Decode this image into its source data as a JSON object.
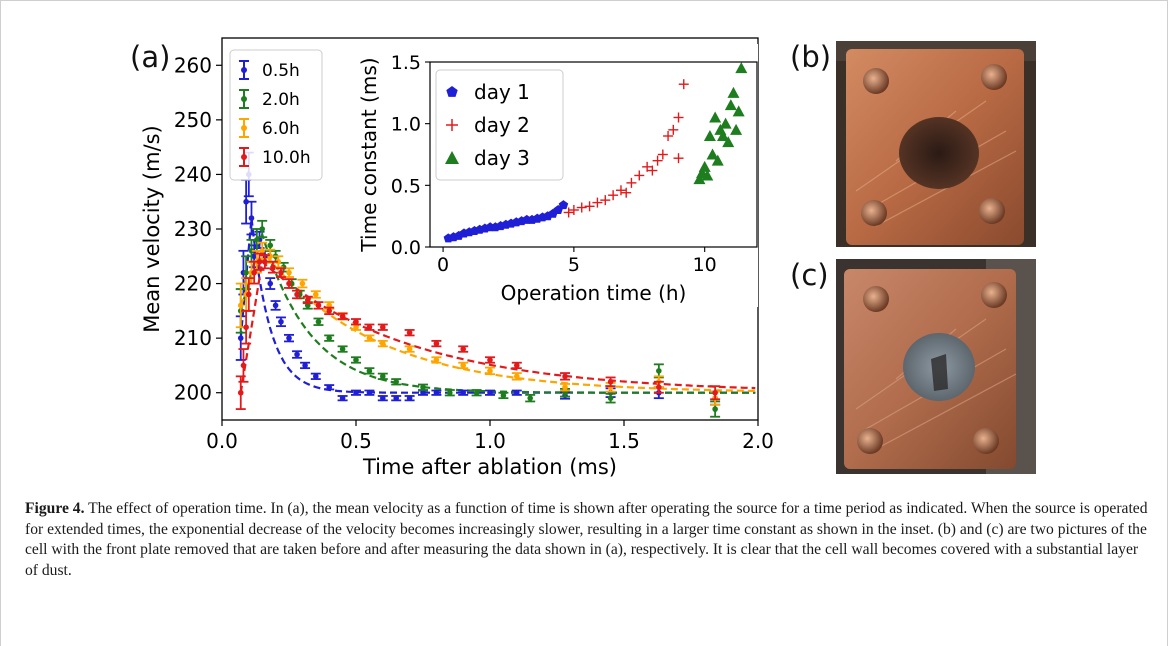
{
  "figure": {
    "panel_labels": [
      "(a)",
      "(b)",
      "(c)"
    ],
    "caption_label": "Figure 4.",
    "caption_text": "The effect of operation time. In (a), the mean velocity as a function of time is shown after operating the source for a time period as indicated. When the source is operated for extended times, the exponential decrease of the velocity becomes increasingly slower, resulting in a larger time constant as shown in the inset. (b) and (c) are two pictures of the cell with the front plate removed that are taken before and after measuring the data shown in (a), respectively. It is clear that the cell wall becomes covered with a substantial layer of dust."
  },
  "chart_data": [
    {
      "type": "scatter",
      "title": "",
      "xlabel": "Time after ablation (ms)",
      "ylabel": "Mean velocity (m/s)",
      "xlim": [
        0.0,
        2.0
      ],
      "ylim": [
        195,
        265
      ],
      "xticks": [
        0.0,
        0.5,
        1.0,
        1.5,
        2.0
      ],
      "xtick_labels": [
        "0.0",
        "0.5",
        "1.0",
        "1.5",
        "2.0"
      ],
      "yticks": [
        200,
        210,
        220,
        230,
        240,
        250,
        260
      ],
      "ytick_labels": [
        "200",
        "210",
        "220",
        "230",
        "240",
        "250",
        "260"
      ],
      "legend": "top-left",
      "error_bars": true,
      "fits": "dashed exponential",
      "series": [
        {
          "name": "0.5h",
          "color": "#1f1fd6",
          "x": [
            0.07,
            0.08,
            0.09,
            0.1,
            0.11,
            0.12,
            0.14,
            0.16,
            0.18,
            0.2,
            0.22,
            0.25,
            0.28,
            0.31,
            0.35,
            0.4,
            0.45,
            0.5,
            0.55,
            0.6,
            0.65,
            0.7,
            0.75,
            0.8,
            0.9,
            1.0,
            1.1,
            1.28,
            1.45,
            1.63,
            1.84
          ],
          "y": [
            210,
            222,
            235,
            240,
            232,
            225,
            228,
            225,
            220,
            216,
            213,
            210,
            207,
            205,
            203,
            201,
            199,
            200,
            200,
            199,
            199,
            199,
            200,
            200,
            200,
            200,
            200,
            199.5,
            200,
            200,
            199
          ],
          "err": [
            4,
            4,
            4,
            4,
            3,
            2,
            1.5,
            1,
            1,
            0.8,
            0.8,
            0.6,
            0.6,
            0.5,
            0.5,
            0.4,
            0.4,
            0.4,
            0.4,
            0.4,
            0.4,
            0.4,
            0.4,
            0.4,
            0.4,
            0.4,
            0.4,
            0.6,
            0.8,
            1,
            1.2
          ]
        },
        {
          "name": "2.0h",
          "color": "#1e7d1e",
          "x": [
            0.07,
            0.09,
            0.11,
            0.13,
            0.15,
            0.18,
            0.2,
            0.23,
            0.26,
            0.29,
            0.32,
            0.36,
            0.4,
            0.45,
            0.5,
            0.55,
            0.6,
            0.65,
            0.75,
            0.85,
            0.95,
            1.05,
            1.15,
            1.28,
            1.45,
            1.63,
            1.84
          ],
          "y": [
            215,
            222,
            226,
            228,
            230,
            227,
            225,
            223,
            220,
            218,
            216,
            213,
            210,
            208,
            206,
            204,
            203,
            202,
            201,
            200,
            200,
            199.5,
            199,
            200,
            199,
            204,
            197
          ],
          "err": [
            4,
            3,
            2,
            2,
            1.5,
            1,
            1,
            0.8,
            0.8,
            0.7,
            0.6,
            0.6,
            0.5,
            0.5,
            0.5,
            0.5,
            0.5,
            0.5,
            0.5,
            0.5,
            0.5,
            0.5,
            0.6,
            0.7,
            0.8,
            1.2,
            1.4
          ]
        },
        {
          "name": "6.0h",
          "color": "#ffa500",
          "x": [
            0.07,
            0.09,
            0.11,
            0.13,
            0.15,
            0.18,
            0.21,
            0.25,
            0.3,
            0.35,
            0.4,
            0.45,
            0.5,
            0.55,
            0.6,
            0.7,
            0.8,
            0.9,
            1.0,
            1.1,
            1.28,
            1.45,
            1.63,
            1.84
          ],
          "y": [
            216,
            218,
            222,
            224,
            226,
            225,
            224,
            222,
            220,
            218,
            216,
            214,
            212,
            210,
            209,
            208,
            206,
            205,
            204,
            203,
            201,
            201,
            202,
            199
          ],
          "err": [
            4,
            3,
            2,
            2,
            1.5,
            1.2,
            1,
            0.8,
            0.7,
            0.6,
            0.6,
            0.6,
            0.5,
            0.5,
            0.5,
            0.5,
            0.5,
            0.5,
            0.6,
            0.6,
            0.6,
            0.8,
            1,
            1.2
          ]
        },
        {
          "name": "10.0h",
          "color": "#e31a1c",
          "x": [
            0.07,
            0.08,
            0.09,
            0.1,
            0.12,
            0.14,
            0.16,
            0.19,
            0.22,
            0.25,
            0.28,
            0.32,
            0.36,
            0.4,
            0.45,
            0.5,
            0.55,
            0.6,
            0.7,
            0.8,
            0.9,
            1.0,
            1.1,
            1.28,
            1.45,
            1.63,
            1.84
          ],
          "y": [
            200,
            205,
            212,
            218,
            222,
            224,
            224,
            223,
            222,
            220,
            218,
            217,
            216,
            215,
            214,
            213,
            212,
            212,
            211,
            209,
            208,
            206,
            205,
            203,
            202,
            201,
            200
          ],
          "err": [
            3,
            3,
            3,
            3,
            2,
            1.5,
            1.2,
            1,
            0.8,
            0.8,
            0.7,
            0.6,
            0.6,
            0.6,
            0.5,
            0.5,
            0.5,
            0.5,
            0.5,
            0.5,
            0.5,
            0.5,
            0.5,
            0.6,
            0.8,
            1,
            1.2
          ]
        }
      ],
      "fit_params": [
        {
          "name": "0.5h",
          "plateau": 200,
          "tau": 0.07,
          "peak_x": 0.11,
          "peak_y": 232
        },
        {
          "name": "2.0h",
          "plateau": 200,
          "tau": 0.18,
          "peak_x": 0.15,
          "peak_y": 229
        },
        {
          "name": "6.0h",
          "plateau": 200,
          "tau": 0.42,
          "peak_x": 0.15,
          "peak_y": 226
        },
        {
          "name": "10.0h",
          "plateau": 200,
          "tau": 0.55,
          "peak_x": 0.15,
          "peak_y": 224
        }
      ]
    },
    {
      "type": "scatter",
      "title": "",
      "xlabel": "Operation time (h)",
      "ylabel": "Time constant (ms)",
      "xlim": [
        -0.5,
        12
      ],
      "ylim": [
        0,
        1.5
      ],
      "xticks": [
        0,
        5,
        10
      ],
      "xtick_labels": [
        "0",
        "5",
        "10"
      ],
      "yticks": [
        0.0,
        0.5,
        1.0,
        1.5
      ],
      "ytick_labels": [
        "0.0",
        "0.5",
        "1.0",
        "1.5"
      ],
      "legend": "top-left",
      "series": [
        {
          "name": "day 1",
          "marker": "pentagon",
          "color": "#1f1fd6",
          "x": [
            0.2,
            0.4,
            0.6,
            0.8,
            1.0,
            1.2,
            1.4,
            1.6,
            1.8,
            2.0,
            2.2,
            2.4,
            2.6,
            2.8,
            3.0,
            3.2,
            3.4,
            3.6,
            3.8,
            4.0,
            4.2,
            4.4,
            4.6
          ],
          "y": [
            0.07,
            0.08,
            0.09,
            0.11,
            0.12,
            0.13,
            0.14,
            0.15,
            0.16,
            0.16,
            0.17,
            0.18,
            0.19,
            0.2,
            0.21,
            0.22,
            0.22,
            0.23,
            0.24,
            0.25,
            0.27,
            0.3,
            0.34
          ]
        },
        {
          "name": "day 2",
          "marker": "plus",
          "color": "#e31a1c",
          "x": [
            4.8,
            5.0,
            5.3,
            5.6,
            5.9,
            6.2,
            6.5,
            6.8,
            7.0,
            7.2,
            7.5,
            7.8,
            8.0,
            8.2,
            8.4,
            8.6,
            8.8,
            9.0,
            9.0,
            9.2
          ],
          "y": [
            0.28,
            0.3,
            0.32,
            0.33,
            0.36,
            0.38,
            0.42,
            0.46,
            0.44,
            0.52,
            0.58,
            0.65,
            0.62,
            0.7,
            0.75,
            0.9,
            0.95,
            0.72,
            1.05,
            1.32
          ]
        },
        {
          "name": "day 3",
          "marker": "triangle",
          "color": "#1e7d1e",
          "x": [
            9.8,
            9.9,
            10.0,
            10.1,
            10.2,
            10.3,
            10.4,
            10.5,
            10.6,
            10.7,
            10.8,
            10.9,
            11.0,
            11.1,
            11.2,
            11.3,
            11.4
          ],
          "y": [
            0.55,
            0.6,
            0.65,
            0.58,
            0.9,
            0.75,
            1.05,
            0.7,
            0.95,
            0.9,
            1.0,
            0.85,
            1.15,
            1.25,
            0.95,
            1.1,
            1.45
          ]
        }
      ]
    }
  ]
}
